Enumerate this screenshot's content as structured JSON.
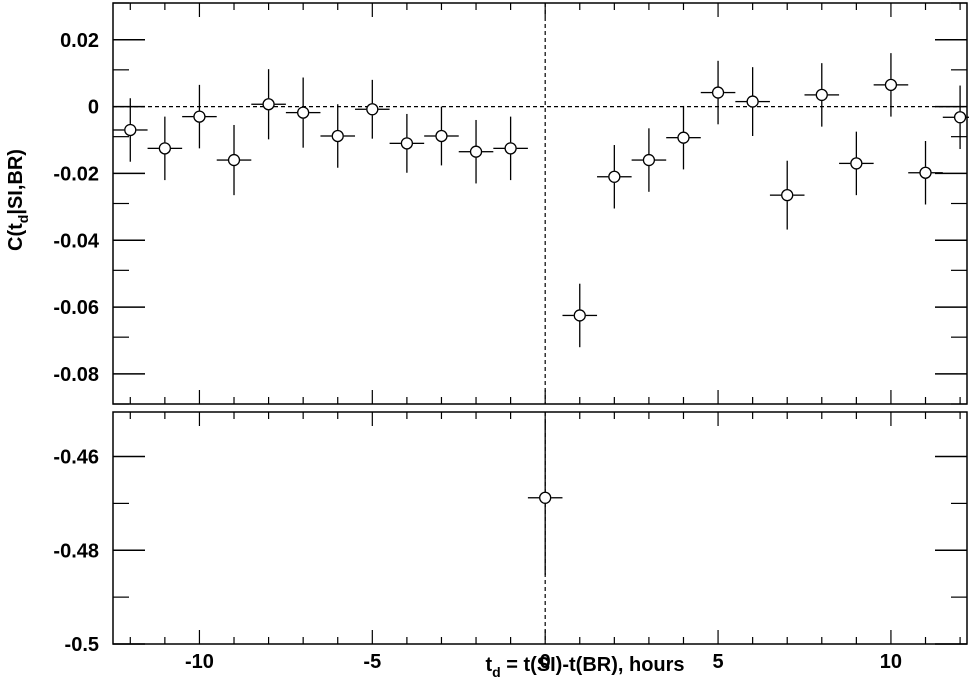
{
  "chart_data": {
    "type": "scatter",
    "title": "",
    "xlabel": {
      "main": "t",
      "sub": "d",
      "rest": " = t(SI)-t(BR), hours"
    },
    "ylabel": {
      "main": "C(t",
      "sub": "d",
      "rest": "|SI,BR)"
    },
    "xlim": [
      -12.5,
      12.2
    ],
    "x_ticks": [
      -10,
      -5,
      0,
      5,
      10
    ],
    "x_tick_labels": [
      "-10",
      "-5",
      "0",
      "5",
      "10"
    ],
    "top_panel": {
      "ylim": [
        -0.089,
        0.031
      ],
      "y_ticks": [
        0.02,
        0,
        -0.02,
        -0.04,
        -0.06,
        -0.08
      ],
      "y_tick_labels": [
        "0.02",
        "0",
        "-0.02",
        "-0.04",
        "-0.06",
        "-0.08"
      ],
      "reference_lines": {
        "y": 0,
        "x": 0
      },
      "points": [
        {
          "x": -12,
          "y": -0.007,
          "yerr": 0.0095
        },
        {
          "x": -11,
          "y": -0.0125,
          "yerr": 0.0095
        },
        {
          "x": -10,
          "y": -0.003,
          "yerr": 0.0095
        },
        {
          "x": -9,
          "y": -0.016,
          "yerr": 0.0105
        },
        {
          "x": -8,
          "y": 0.0007,
          "yerr": 0.0105
        },
        {
          "x": -7,
          "y": -0.0018,
          "yerr": 0.0105
        },
        {
          "x": -6,
          "y": -0.0088,
          "yerr": 0.0095
        },
        {
          "x": -5,
          "y": -0.0008,
          "yerr": 0.0088
        },
        {
          "x": -4,
          "y": -0.011,
          "yerr": 0.0088
        },
        {
          "x": -3,
          "y": -0.0088,
          "yerr": 0.0088
        },
        {
          "x": -2,
          "y": -0.0135,
          "yerr": 0.0095
        },
        {
          "x": -1,
          "y": -0.0125,
          "yerr": 0.0095
        },
        {
          "x": 1,
          "y": -0.0625,
          "yerr": 0.0095
        },
        {
          "x": 2,
          "y": -0.021,
          "yerr": 0.0095
        },
        {
          "x": 3,
          "y": -0.016,
          "yerr": 0.0095
        },
        {
          "x": 4,
          "y": -0.0093,
          "yerr": 0.0095
        },
        {
          "x": 5,
          "y": 0.0042,
          "yerr": 0.0095
        },
        {
          "x": 6,
          "y": 0.0015,
          "yerr": 0.0103
        },
        {
          "x": 7,
          "y": -0.0265,
          "yerr": 0.0103
        },
        {
          "x": 8,
          "y": 0.0035,
          "yerr": 0.0095
        },
        {
          "x": 9,
          "y": -0.017,
          "yerr": 0.0095
        },
        {
          "x": 10,
          "y": 0.0065,
          "yerr": 0.0095
        },
        {
          "x": 11,
          "y": -0.0198,
          "yerr": 0.0095
        },
        {
          "x": 12,
          "y": -0.0032,
          "yerr": 0.0095
        }
      ]
    },
    "bottom_panel": {
      "ylim": [
        -0.5,
        -0.4505
      ],
      "y_ticks": [
        -0.46,
        -0.48,
        -0.5
      ],
      "y_tick_labels": [
        "-0.46",
        "-0.48",
        "-0.5"
      ],
      "reference_lines": {
        "x": 0
      },
      "points": [
        {
          "x": 0,
          "y": -0.4688,
          "yerr": 0.0165
        }
      ]
    },
    "grid": false,
    "legend": "none"
  }
}
